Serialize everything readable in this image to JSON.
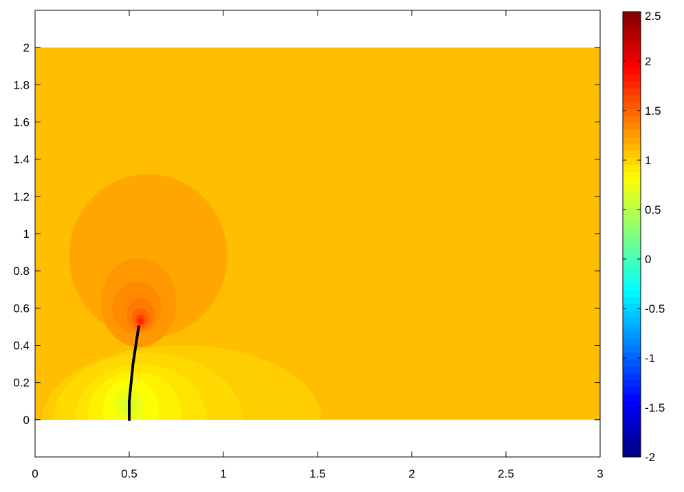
{
  "chart_data": {
    "type": "heatmap",
    "title": "",
    "xlabel": "",
    "ylabel": "",
    "xlim": [
      0,
      3
    ],
    "ylim": [
      -0.2,
      2.2
    ],
    "field_extent": {
      "x": [
        0,
        3
      ],
      "y": [
        0,
        2
      ]
    },
    "x_ticks": [
      "0",
      "0.5",
      "1",
      "1.5",
      "2",
      "2.5",
      "3"
    ],
    "y_ticks": [
      "0",
      "0.2",
      "0.4",
      "0.6",
      "0.8",
      "1",
      "1.2",
      "1.4",
      "1.6",
      "1.8",
      "2"
    ],
    "grid": false,
    "background_level": 1.1,
    "colorbar": {
      "colormap": "jet",
      "range": [
        -2,
        2.5
      ],
      "ticks": [
        "2.5",
        "2",
        "1.5",
        "1",
        "0.5",
        "0",
        "-0.5",
        "-1",
        "-1.5",
        "-2"
      ]
    },
    "crack_path": {
      "color": "#000000",
      "points": [
        [
          0.5,
          0.0
        ],
        [
          0.5,
          0.1
        ],
        [
          0.51,
          0.2
        ],
        [
          0.52,
          0.3
        ],
        [
          0.535,
          0.4
        ],
        [
          0.55,
          0.5
        ]
      ]
    },
    "hot_spot": {
      "x": 0.56,
      "y": 0.53,
      "peak": 1.8
    },
    "cool_spot": {
      "x": 0.5,
      "y": 0.08,
      "min": 0.5
    },
    "contour_bands": [
      {
        "name": "lobe-upper-outer",
        "cx": 0.6,
        "cy": 0.88,
        "rx": 0.42,
        "ry": 0.44,
        "level": 1.2
      },
      {
        "name": "lobe-upper-2",
        "cx": 0.55,
        "cy": 0.63,
        "rx": 0.2,
        "ry": 0.24,
        "level": 1.27
      },
      {
        "name": "lobe-upper-3",
        "cx": 0.54,
        "cy": 0.6,
        "rx": 0.13,
        "ry": 0.14,
        "level": 1.33
      },
      {
        "name": "lobe-upper-4",
        "cx": 0.56,
        "cy": 0.565,
        "rx": 0.075,
        "ry": 0.09,
        "level": 1.4
      },
      {
        "name": "lobe-upper-5",
        "cx": 0.56,
        "cy": 0.545,
        "rx": 0.045,
        "ry": 0.055,
        "level": 1.5
      },
      {
        "name": "lobe-upper-6",
        "cx": 0.56,
        "cy": 0.535,
        "rx": 0.025,
        "ry": 0.03,
        "level": 1.65
      },
      {
        "name": "lobe-upper-7",
        "cx": 0.56,
        "cy": 0.53,
        "rx": 0.012,
        "ry": 0.014,
        "level": 1.8
      },
      {
        "name": "lobe-lower-1",
        "cx": 0.78,
        "cy": 0.0,
        "rx": 0.74,
        "ry": 0.4,
        "level": 1.03
      },
      {
        "name": "lobe-lower-2",
        "cx": 0.6,
        "cy": 0.0,
        "rx": 0.5,
        "ry": 0.36,
        "level": 0.98
      },
      {
        "name": "lobe-lower-3",
        "cx": 0.56,
        "cy": 0.0,
        "rx": 0.35,
        "ry": 0.3,
        "level": 0.93
      },
      {
        "name": "lobe-lower-4",
        "cx": 0.53,
        "cy": 0.02,
        "rx": 0.25,
        "ry": 0.24,
        "level": 0.87
      },
      {
        "name": "lobe-lower-5",
        "cx": 0.51,
        "cy": 0.05,
        "rx": 0.15,
        "ry": 0.17,
        "level": 0.8
      },
      {
        "name": "lobe-lower-6",
        "cx": 0.5,
        "cy": 0.07,
        "rx": 0.08,
        "ry": 0.1,
        "level": 0.72
      },
      {
        "name": "lobe-lower-7",
        "cx": 0.5,
        "cy": 0.08,
        "rx": 0.035,
        "ry": 0.045,
        "level": 0.62
      }
    ]
  }
}
